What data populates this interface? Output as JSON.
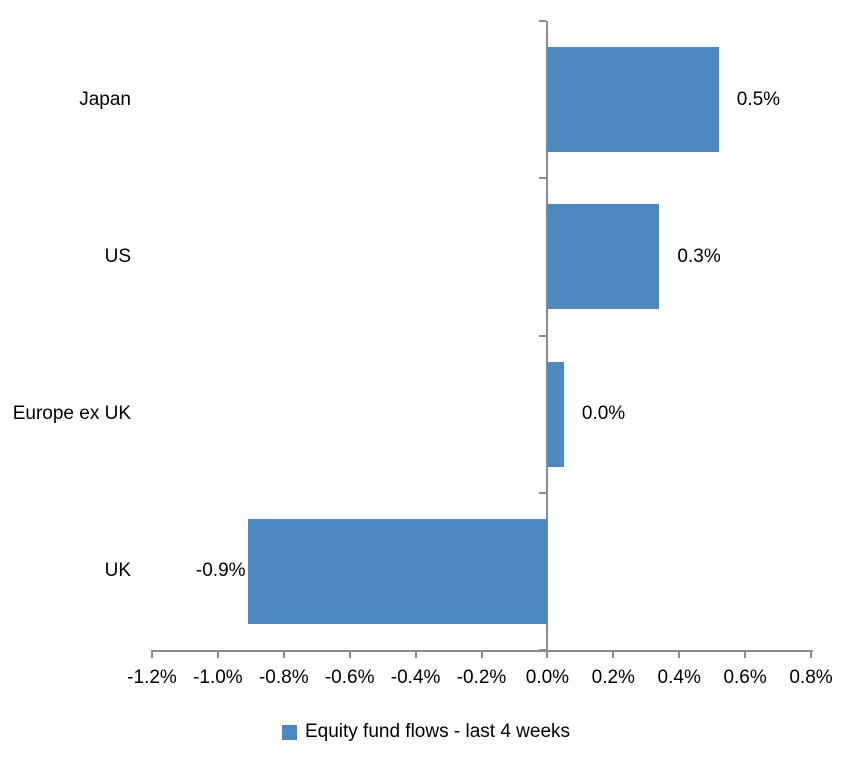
{
  "chart_data": {
    "type": "bar",
    "orientation": "horizontal",
    "title": "",
    "xlabel": "",
    "ylabel": "",
    "categories": [
      "Japan",
      "US",
      "Europe ex UK",
      "UK"
    ],
    "values": [
      0.5,
      0.3,
      0.0,
      -0.9
    ],
    "bar_values": [
      0.52,
      0.34,
      0.05,
      -0.91
    ],
    "value_labels": [
      "0.5%",
      "0.3%",
      "0.0%",
      "-0.9%"
    ],
    "series_name": "Equity fund flows - last 4 weeks",
    "xlim": [
      -1.2,
      0.8
    ],
    "x_tick_step": 0.2,
    "x_tick_labels": [
      "-1.2%",
      "-1.0%",
      "-0.8%",
      "-0.6%",
      "-0.4%",
      "-0.2%",
      "0.0%",
      "0.2%",
      "0.4%",
      "0.6%",
      "0.8%"
    ],
    "grid": "off",
    "legend_position": "bottom-center",
    "bar_color": "#4D89C0",
    "axis_color": "#8C8C8C",
    "text_color": "#000000"
  },
  "legend": {
    "swatch_icon": "legend-square-icon",
    "label": "Equity fund flows - last 4 weeks"
  }
}
